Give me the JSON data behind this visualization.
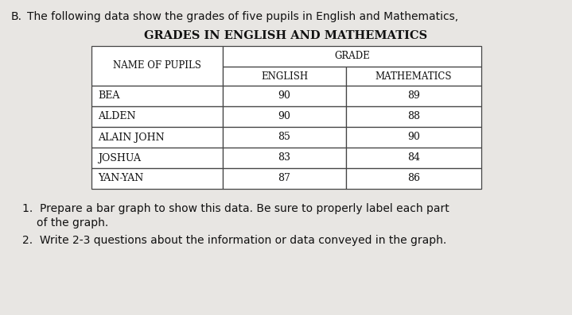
{
  "intro_b": "B.",
  "intro_text": "The following data show the grades of five pupils in English and Mathematics,",
  "title": "Grades in English and Mathematics",
  "col_header_1": "Name of Pupils",
  "col_header_grade": "Grade",
  "col_header_eng": "English",
  "col_header_math": "Mathematics",
  "pupils": [
    "Bea",
    "Alden",
    "Alain John",
    "Joshua",
    "Yan-Yan"
  ],
  "english": [
    90,
    90,
    85,
    83,
    87
  ],
  "mathematics": [
    89,
    88,
    90,
    84,
    86
  ],
  "instruction1": "1.  Prepare a bar graph to show this data. Be sure to properly label each part\n    of the graph.",
  "instruction2": "2.  Write 2-3 questions about the information or data conveyed in the graph.",
  "bg_color": "#e8e6e3",
  "table_bg": "#ffffff",
  "border_color": "#444444",
  "title_fontsize": 10.5,
  "header_fontsize": 8.5,
  "data_fontsize": 9,
  "intro_fontsize": 10,
  "instr_fontsize": 10
}
